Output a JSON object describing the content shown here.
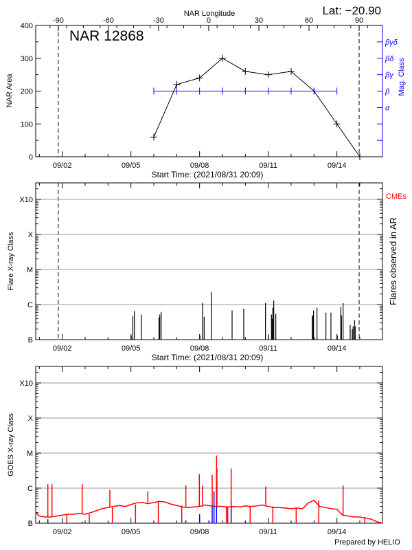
{
  "header": {
    "lat_label": "Lat: −20.90",
    "region_title": "NAR 12868",
    "longitude_axis_label": "NAR Longitude"
  },
  "footer": {
    "credit": "Prepared by HELIO"
  },
  "colors": {
    "axis": "#000000",
    "mag_class": "#0000ff",
    "goes": "#ff0000",
    "goes_secondary": "#0000ff",
    "cme": "#ff0000",
    "grid": "#999999"
  },
  "chart_data": [
    {
      "type": "line",
      "panel": "nar",
      "title": "NAR 12868",
      "xlabel": "Start Time: (2021/08/31 20:09)",
      "ylabel": "NAR Area",
      "ylabel_right": "Mag. Class",
      "xlabel_top": "NAR Longitude",
      "start_time": "08/31 20:09",
      "ylim": [
        0,
        400
      ],
      "yticks": [
        "0",
        "100",
        "200",
        "300",
        "400"
      ],
      "xtick_labels": [
        "09/02",
        "09/05",
        "09/08",
        "09/11",
        "09/14"
      ],
      "longitude_ticks": [
        "-90",
        "-60",
        "-30",
        "0",
        "30",
        "60",
        "90"
      ],
      "limb_crossings": {
        "east_-90": "09/01 19:50",
        "west_90": "09/14 23:20"
      },
      "mag_class_ticks": [
        "α",
        "β",
        "βγ",
        "βδ",
        "βγδ"
      ],
      "series": [
        {
          "kind": "area",
          "color": "#000000",
          "points": [
            [
              "09/06 00:00",
              60
            ],
            [
              "09/07 00:00",
              220
            ],
            [
              "09/08 00:00",
              240
            ],
            [
              "09/09 00:00",
              300
            ],
            [
              "09/10 00:00",
              260
            ],
            [
              "09/11 00:00",
              250
            ],
            [
              "09/12 00:00",
              260
            ],
            [
              "09/13 00:00",
              200
            ],
            [
              "09/14 00:00",
              100
            ],
            [
              "09/15 00:00",
              0
            ]
          ]
        },
        {
          "kind": "mag_class",
          "color": "#0000ff",
          "points": [
            [
              "09/06 00:00",
              "β"
            ],
            [
              "09/07 00:00",
              "β"
            ],
            [
              "09/08 00:00",
              "β"
            ],
            [
              "09/09 00:00",
              "β"
            ],
            [
              "09/10 00:00",
              "β"
            ],
            [
              "09/11 00:00",
              "β"
            ],
            [
              "09/12 00:00",
              "β"
            ],
            [
              "09/13 00:00",
              "β"
            ],
            [
              "09/14 00:00",
              "β"
            ]
          ]
        }
      ]
    },
    {
      "type": "bar",
      "panel": "flares",
      "xlabel": "Start Time: (2021/08/31 20:09)",
      "ylabel": "Flare X-ray Class",
      "ylabel_right": "Flares observed in AR",
      "legend_right": "CMEs",
      "yscale": "log",
      "yticks": [
        "B",
        "C",
        "M",
        "X",
        "X10"
      ],
      "grid": true,
      "xtick_labels": [
        "09/02",
        "09/05",
        "09/08",
        "09/11",
        "09/14"
      ],
      "flares": [
        [
          "09/05 00:22",
          "B1.3"
        ],
        [
          "09/05 02:01",
          "B4.7"
        ],
        [
          "09/05 03:40",
          "B6.5"
        ],
        [
          "09/05 10:52",
          "B5.2"
        ],
        [
          "09/06 05:27",
          "B4.3"
        ],
        [
          "09/06 06:16",
          "B5.2"
        ],
        [
          "09/06 07:39",
          "B6.2"
        ],
        [
          "09/08 00:22",
          "B1.3"
        ],
        [
          "09/08 03:07",
          "C1.1"
        ],
        [
          "09/08 04:48",
          "B4.5"
        ],
        [
          "09/08 12:14",
          "C2.3"
        ],
        [
          "09/09 10:05",
          "B6.8"
        ],
        [
          "09/09 22:19",
          "B7.7"
        ],
        [
          "09/10 21:07",
          "C1.1"
        ],
        [
          "09/11 00:00",
          "B1.3"
        ],
        [
          "09/11 03:22",
          "B5.2"
        ],
        [
          "09/11 04:05",
          "B3.9"
        ],
        [
          "09/11 04:48",
          "B8.1"
        ],
        [
          "09/11 05:46",
          "C1.3"
        ],
        [
          "09/11 07:55",
          "B5.4"
        ],
        [
          "09/12 22:05",
          "B4.9"
        ],
        [
          "09/12 23:02",
          "B4.7"
        ],
        [
          "09/12 23:31",
          "B6.8"
        ],
        [
          "09/13 00:14",
          "B1.1"
        ],
        [
          "09/13 03:07",
          "B8.1"
        ],
        [
          "09/13 12:29",
          "B5.9"
        ],
        [
          "09/13 17:46",
          "B5.9"
        ],
        [
          "09/14 00:29",
          "B1.3"
        ],
        [
          "09/14 04:05",
          "B8.5"
        ],
        [
          "09/14 04:48",
          "B4.9"
        ],
        [
          "09/14 06:29",
          "C1.1"
        ],
        [
          "09/14 13:55",
          "B2.6"
        ],
        [
          "09/14 16:05",
          "B2.0"
        ],
        [
          "09/14 17:02",
          "B2.4"
        ],
        [
          "09/14 18:29",
          "B3.6"
        ],
        [
          "09/14 19:12",
          "B2.4"
        ]
      ]
    },
    {
      "type": "line",
      "panel": "goes",
      "ylabel": "GOES X-ray Class",
      "yscale": "log",
      "yticks": [
        "B",
        "C",
        "M",
        "X",
        "X10"
      ],
      "grid": true,
      "xtick_labels": [
        "09/02",
        "09/05",
        "09/08",
        "09/11",
        "09/14"
      ],
      "background": [
        [
          "08/31 20:09",
          "B2.0"
        ],
        [
          "09/01 00:00",
          "B1.6"
        ],
        [
          "09/01 06:00",
          "B1.5"
        ],
        [
          "09/01 12:00",
          "B1.5"
        ],
        [
          "09/01 18:00",
          "B1.6"
        ],
        [
          "09/02 00:00",
          "B1.7"
        ],
        [
          "09/02 06:00",
          "B1.8"
        ],
        [
          "09/02 12:00",
          "B1.8"
        ],
        [
          "09/02 18:00",
          "B1.9"
        ],
        [
          "09/03 00:00",
          "B1.8"
        ],
        [
          "09/03 06:00",
          "B2.0"
        ],
        [
          "09/03 12:00",
          "B2.3"
        ],
        [
          "09/03 18:00",
          "B2.6"
        ],
        [
          "09/04 00:00",
          "B2.8"
        ],
        [
          "09/04 06:00",
          "B3.0"
        ],
        [
          "09/04 12:00",
          "B3.2"
        ],
        [
          "09/04 18:00",
          "B3.0"
        ],
        [
          "09/05 00:00",
          "B3.4"
        ],
        [
          "09/05 06:00",
          "B3.8"
        ],
        [
          "09/05 12:00",
          "B3.9"
        ],
        [
          "09/05 18:00",
          "B3.6"
        ],
        [
          "09/06 00:00",
          "B3.9"
        ],
        [
          "09/06 06:00",
          "B4.2"
        ],
        [
          "09/06 12:00",
          "B4.0"
        ],
        [
          "09/06 18:00",
          "B3.5"
        ],
        [
          "09/07 00:00",
          "B3.2"
        ],
        [
          "09/07 06:00",
          "B2.9"
        ],
        [
          "09/07 12:00",
          "B2.8"
        ],
        [
          "09/07 18:00",
          "B2.9"
        ],
        [
          "09/08 00:00",
          "B3.0"
        ],
        [
          "09/08 06:00",
          "B3.3"
        ],
        [
          "09/08 12:00",
          "B3.1"
        ],
        [
          "09/08 18:00",
          "B3.0"
        ],
        [
          "09/09 00:00",
          "B3.0"
        ],
        [
          "09/09 06:00",
          "B2.9"
        ],
        [
          "09/09 12:00",
          "B3.0"
        ],
        [
          "09/09 18:00",
          "B2.9"
        ],
        [
          "09/10 00:00",
          "B3.1"
        ],
        [
          "09/10 06:00",
          "B3.0"
        ],
        [
          "09/10 12:00",
          "B3.1"
        ],
        [
          "09/10 18:00",
          "B3.3"
        ],
        [
          "09/11 00:00",
          "B3.0"
        ],
        [
          "09/11 06:00",
          "B2.8"
        ],
        [
          "09/11 12:00",
          "B2.8"
        ],
        [
          "09/11 18:00",
          "B2.7"
        ],
        [
          "09/12 00:00",
          "B2.6"
        ],
        [
          "09/12 06:00",
          "B2.7"
        ],
        [
          "09/12 12:00",
          "B2.6"
        ],
        [
          "09/12 18:00",
          "B3.8"
        ],
        [
          "09/13 00:00",
          "B4.5"
        ],
        [
          "09/13 06:00",
          "B3.0"
        ],
        [
          "09/13 12:00",
          "B2.8"
        ],
        [
          "09/13 18:00",
          "B2.6"
        ],
        [
          "09/14 00:00",
          "B2.5"
        ],
        [
          "09/14 06:00",
          "B1.7"
        ],
        [
          "09/14 12:00",
          "B1.6"
        ],
        [
          "09/14 18:00",
          "B1.5"
        ],
        [
          "09/15 00:00",
          "B1.5"
        ],
        [
          "09/15 06:00",
          "B1.4"
        ],
        [
          "09/15 12:00",
          "B1.3"
        ],
        [
          "09/15 18:00",
          "B1.1"
        ],
        [
          "09/15 23:50",
          "B1.0"
        ]
      ],
      "peaks": [
        [
          "09/01 08:53",
          "C1.3"
        ],
        [
          "09/01 13:12",
          "C1.3"
        ],
        [
          "09/02 20:53",
          "C1.3"
        ],
        [
          "09/04 01:55",
          "B8.9"
        ],
        [
          "09/05 17:46",
          "B8.1"
        ],
        [
          "09/07 09:36",
          "C1.2"
        ],
        [
          "09/07 23:45",
          "C2.5"
        ],
        [
          "09/08 03:07",
          "C1.2"
        ],
        [
          "09/08 13:12",
          "C2.4"
        ],
        [
          "09/08 17:46",
          "C8.5"
        ],
        [
          "09/08 18:14",
          "C3.6"
        ],
        [
          "09/09 09:07",
          "C3.6"
        ],
        [
          "09/10 21:22",
          "C1.1"
        ],
        [
          "09/14 06:29",
          "C1.2"
        ]
      ],
      "dropouts": [
        "09/02 04:48",
        "09/03 04:19",
        "09/04 04:34",
        "09/05 04:48",
        "09/06 04:48",
        "09/07 05:17",
        "09/09 04:05",
        "09/09 05:31",
        "09/10 05:02",
        "09/11 04:48",
        "09/12 05:17",
        "09/13 05:02",
        "09/15 05:17",
        "09/15 20:38"
      ],
      "secondary_bars": [
        [
          "09/01 08:53",
          "B1.3"
        ],
        [
          "09/02 20:53",
          "B1.1"
        ],
        [
          "09/07 09:36",
          "B1.2"
        ],
        [
          "09/08 00:00",
          "B1.8"
        ],
        [
          "09/08 09:50",
          "B1.2"
        ],
        [
          "09/08 13:12",
          "B3.0"
        ],
        [
          "09/08 15:07",
          "B8.1"
        ],
        [
          "09/08 17:46",
          "C1.7"
        ],
        [
          "09/09 09:07",
          "B4.1"
        ]
      ]
    }
  ]
}
